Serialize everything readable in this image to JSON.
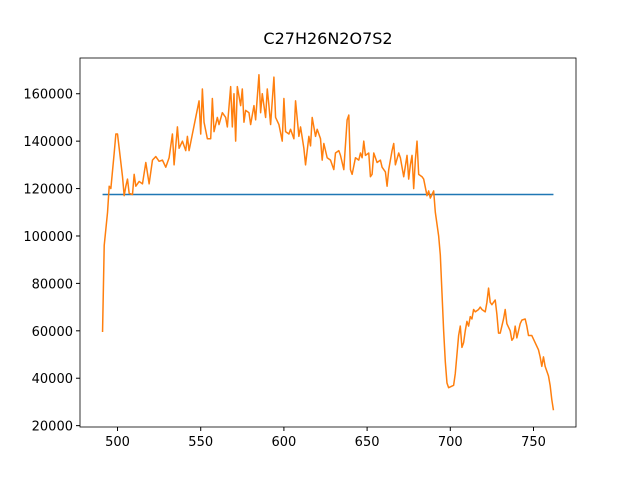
{
  "chart_data": {
    "type": "line",
    "title": "C27H26N2O7S2",
    "xlim": [
      477.45,
      775.55
    ],
    "xticks": [
      500,
      550,
      600,
      650,
      700,
      750
    ],
    "ylim": [
      19425,
      175075
    ],
    "yticks": [
      20000,
      40000,
      60000,
      80000,
      100000,
      120000,
      140000,
      160000
    ],
    "grid": false,
    "series": [
      {
        "color": "#1f77b4",
        "x": [
          491,
          762
        ],
        "values": [
          117500,
          117500
        ]
      },
      {
        "color": "#ff7f0e",
        "x": [
          491,
          492,
          494,
          495,
          496,
          498,
          499,
          500,
          501,
          503,
          504,
          505,
          506,
          507,
          509,
          510,
          511,
          513,
          515,
          517,
          519,
          521,
          523,
          525,
          527,
          529,
          531,
          533,
          534,
          536,
          537,
          539,
          541,
          542,
          543,
          545,
          547,
          549,
          550,
          551,
          552,
          554,
          556,
          557,
          558,
          560,
          561,
          563,
          565,
          566,
          568,
          569,
          570,
          571,
          572,
          574,
          575,
          576,
          577,
          579,
          580,
          582,
          583,
          585,
          586,
          587,
          589,
          590,
          591,
          592,
          594,
          595,
          597,
          599,
          600,
          601,
          603,
          604,
          606,
          607,
          609,
          610,
          612,
          613,
          615,
          616,
          617,
          619,
          620,
          622,
          623,
          624,
          626,
          628,
          630,
          631,
          633,
          634,
          636,
          638,
          639,
          640,
          641,
          643,
          645,
          646,
          647,
          648,
          649,
          651,
          652,
          653,
          654,
          656,
          658,
          659,
          661,
          662,
          663,
          665,
          666,
          667,
          669,
          670,
          672,
          674,
          675,
          676,
          677,
          678,
          679,
          680,
          681,
          683,
          684,
          686,
          687,
          688,
          690,
          691,
          693,
          694,
          695,
          696,
          697,
          698,
          699,
          702,
          703,
          704,
          705,
          706,
          707,
          708,
          709,
          710,
          711,
          712,
          713,
          714,
          715,
          717,
          718,
          719,
          721,
          722,
          723,
          724,
          725,
          727,
          728,
          729,
          730,
          732,
          733,
          734,
          736,
          737,
          738,
          739,
          740,
          742,
          743,
          745,
          746,
          747,
          749,
          751,
          753,
          754,
          755,
          756,
          757,
          759,
          760,
          761,
          762
        ],
        "values": [
          59500,
          96000,
          110000,
          121000,
          120000,
          135000,
          143000,
          143000,
          137000,
          125000,
          117000,
          121000,
          124000,
          118000,
          117500,
          126000,
          121000,
          123000,
          122000,
          131000,
          122000,
          132000,
          133500,
          131500,
          132000,
          129000,
          133000,
          143000,
          130000,
          146000,
          137000,
          140000,
          136000,
          142000,
          136000,
          143000,
          150000,
          157000,
          143000,
          162000,
          148000,
          141000,
          141000,
          158000,
          144000,
          150000,
          147000,
          152000,
          150000,
          146000,
          163000,
          146000,
          160000,
          140000,
          163000,
          155000,
          162000,
          148000,
          153000,
          152000,
          147000,
          155000,
          149000,
          168000,
          152000,
          160000,
          150000,
          162000,
          155000,
          147000,
          167000,
          150000,
          147000,
          140000,
          158000,
          144000,
          143000,
          145000,
          141000,
          157000,
          142000,
          146000,
          137000,
          130000,
          142000,
          138000,
          150000,
          142000,
          145000,
          141000,
          132000,
          139000,
          133000,
          132000,
          128000,
          135000,
          136000,
          134000,
          128000,
          149000,
          151000,
          128000,
          126000,
          133000,
          132000,
          135000,
          133000,
          140000,
          134000,
          135000,
          125000,
          126000,
          135000,
          131000,
          132000,
          129000,
          127000,
          121000,
          128000,
          136000,
          139000,
          130000,
          135000,
          133000,
          125000,
          134000,
          124000,
          130000,
          134000,
          120000,
          132000,
          140000,
          126000,
          125000,
          124000,
          117000,
          119000,
          116000,
          119000,
          110000,
          100000,
          92000,
          76000,
          60000,
          47000,
          38000,
          36000,
          37000,
          42000,
          50000,
          58000,
          62000,
          53000,
          55000,
          60000,
          64000,
          62000,
          66000,
          65000,
          69000,
          68000,
          69000,
          70000,
          69000,
          68000,
          72000,
          78000,
          72000,
          71000,
          73000,
          67000,
          59000,
          59000,
          65000,
          69000,
          63000,
          60000,
          56000,
          57000,
          62000,
          57000,
          63000,
          64500,
          65000,
          62000,
          58000,
          58000,
          55000,
          52000,
          49000,
          45000,
          49000,
          45000,
          41000,
          37000,
          31000,
          26500
        ]
      }
    ]
  }
}
